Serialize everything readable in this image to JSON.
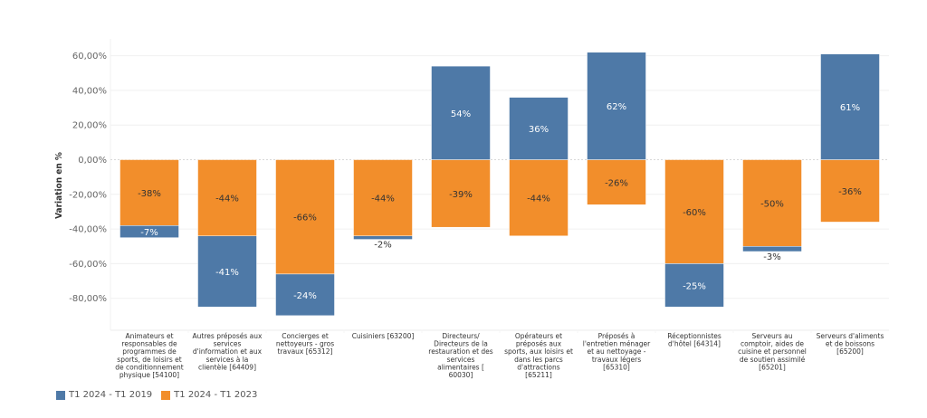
{
  "chart_data": {
    "type": "bar",
    "stacked": true,
    "title": "",
    "xlabel": "",
    "ylabel": "Variation en %",
    "ylim": [
      -90,
      62
    ],
    "yticks": [
      60,
      40,
      20,
      0,
      -20,
      -40,
      -60,
      -80
    ],
    "ytick_labels": [
      "60,00%",
      "40,00%",
      "20,00%",
      "0,00%",
      "-20,00%",
      "-40,00%",
      "-60,00%",
      "-80,00%"
    ],
    "grid": true,
    "legend_position": "bottom-left",
    "categories": [
      "Animateurs et responsables de programmes de sports, de loisirs et de conditionnement physique [54100]",
      "Autres préposés aux services d'information et aux services à la clientèle [64409]",
      "Concierges et nettoyeurs - gros travaux [65312]",
      "Cuisiniers [63200]",
      "Directeurs/ Directeurs de la restauration et des services alimentaires [ 60030]",
      "Opérateurs et préposés aux sports, aux loisirs et dans les parcs d'attractions [65211]",
      "Préposés à l'entretien ménager et au nettoyage - travaux légers [65310]",
      "Réceptionnistes d'hôtel [64314]",
      "Serveurs au comptoir, aides de cuisine et personnel de soutien assimilé [65201]",
      "Serveurs d'aliments et de boissons [65200]"
    ],
    "category_lines": [
      [
        "Animateurs et",
        "responsables de",
        "programmes de",
        "sports, de loisirs et",
        "de conditionnement",
        "physique [54100]"
      ],
      [
        "Autres préposés aux",
        "services",
        "d'information et aux",
        "services à la",
        "clientèle [64409]"
      ],
      [
        "Concierges et",
        "nettoyeurs - gros",
        "travaux [65312]"
      ],
      [
        "Cuisiniers [63200]"
      ],
      [
        "Directeurs/",
        "Directeurs de la",
        "restauration et des",
        "services",
        "alimentaires [",
        "60030]"
      ],
      [
        "Opérateurs et",
        "préposés aux",
        "sports, aux loisirs et",
        "dans les parcs",
        "d'attractions",
        "[65211]"
      ],
      [
        "Préposés à",
        "l'entretien ménager",
        "et au nettoyage -",
        "travaux légers",
        "[65310]"
      ],
      [
        "Réceptionnistes",
        "d'hôtel [64314]"
      ],
      [
        "Serveurs au",
        "comptoir, aides de",
        "cuisine et personnel",
        "de soutien assimilé",
        "[65201]"
      ],
      [
        "Serveurs d'aliments",
        "et de boissons",
        "[65200]"
      ]
    ],
    "series": [
      {
        "name": "T1 2024 - T1 2019",
        "color": "#4e79a7",
        "values": [
          -7,
          -41,
          -24,
          -2,
          54,
          36,
          62,
          -25,
          -3,
          61
        ],
        "labels": [
          "-7%",
          "-41%",
          "-24%",
          "-2%",
          "54%",
          "36%",
          "62%",
          "-25%",
          "-3%",
          "61%"
        ]
      },
      {
        "name": "T1 2024 - T1 2023",
        "color": "#f28e2b",
        "values": [
          -38,
          -44,
          -66,
          -44,
          -39,
          -44,
          -26,
          -60,
          -50,
          -36
        ],
        "labels": [
          "-38%",
          "-44%",
          "-66%",
          "-44%",
          "-39%",
          "-44%",
          "-26%",
          "-60%",
          "-50%",
          "-36%"
        ]
      }
    ]
  },
  "legend": {
    "items": [
      {
        "label": "T1 2024 - T1 2019",
        "color": "#4e79a7"
      },
      {
        "label": "T1 2024 - T1 2023",
        "color": "#f28e2b"
      }
    ]
  }
}
